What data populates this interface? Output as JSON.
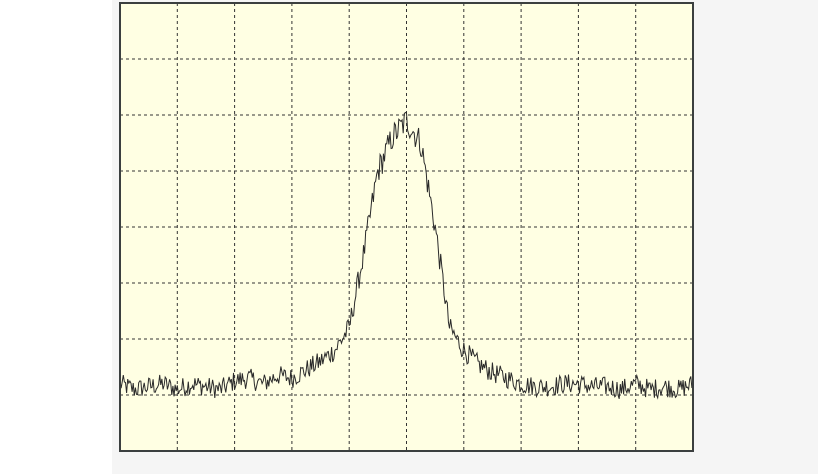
{
  "chart_data": {
    "type": "line",
    "title": "",
    "xlabel": "",
    "ylabel": "",
    "grid": true,
    "grid_divisions": {
      "x": 10,
      "y": 8
    },
    "x_range": [
      0,
      10
    ],
    "y_range": [
      0,
      8
    ],
    "x_unit": "div",
    "y_unit": "div",
    "description_of_shape": "noisy baseline near 1.2 div with a single peak centred near 5 div reaching about 6 div",
    "series": [
      {
        "name": "",
        "x": [
          0.0,
          0.25,
          0.5,
          0.75,
          1.0,
          1.25,
          1.5,
          1.75,
          2.0,
          2.25,
          2.5,
          2.75,
          3.0,
          3.25,
          3.5,
          3.75,
          4.0,
          4.25,
          4.5,
          4.75,
          5.0,
          5.25,
          5.5,
          5.75,
          6.0,
          6.25,
          6.5,
          6.75,
          7.0,
          7.25,
          7.5,
          7.75,
          8.0,
          8.25,
          8.5,
          8.75,
          9.0,
          9.25,
          9.5,
          9.75,
          10.0
        ],
        "y": [
          1.2,
          1.1,
          1.15,
          1.2,
          1.1,
          1.2,
          1.15,
          1.1,
          1.25,
          1.3,
          1.2,
          1.35,
          1.3,
          1.45,
          1.6,
          1.8,
          2.2,
          3.5,
          5.0,
          5.6,
          5.9,
          5.5,
          4.0,
          2.2,
          1.8,
          1.55,
          1.4,
          1.3,
          1.2,
          1.15,
          1.15,
          1.2,
          1.2,
          1.15,
          1.15,
          1.1,
          1.2,
          1.1,
          1.15,
          1.1,
          1.2
        ]
      }
    ]
  },
  "style": {
    "plot_bg": "#ffffe3",
    "frame_color": "#3b3f3f",
    "grid_color": "#333333",
    "trace_color": "#2a2a2a"
  }
}
